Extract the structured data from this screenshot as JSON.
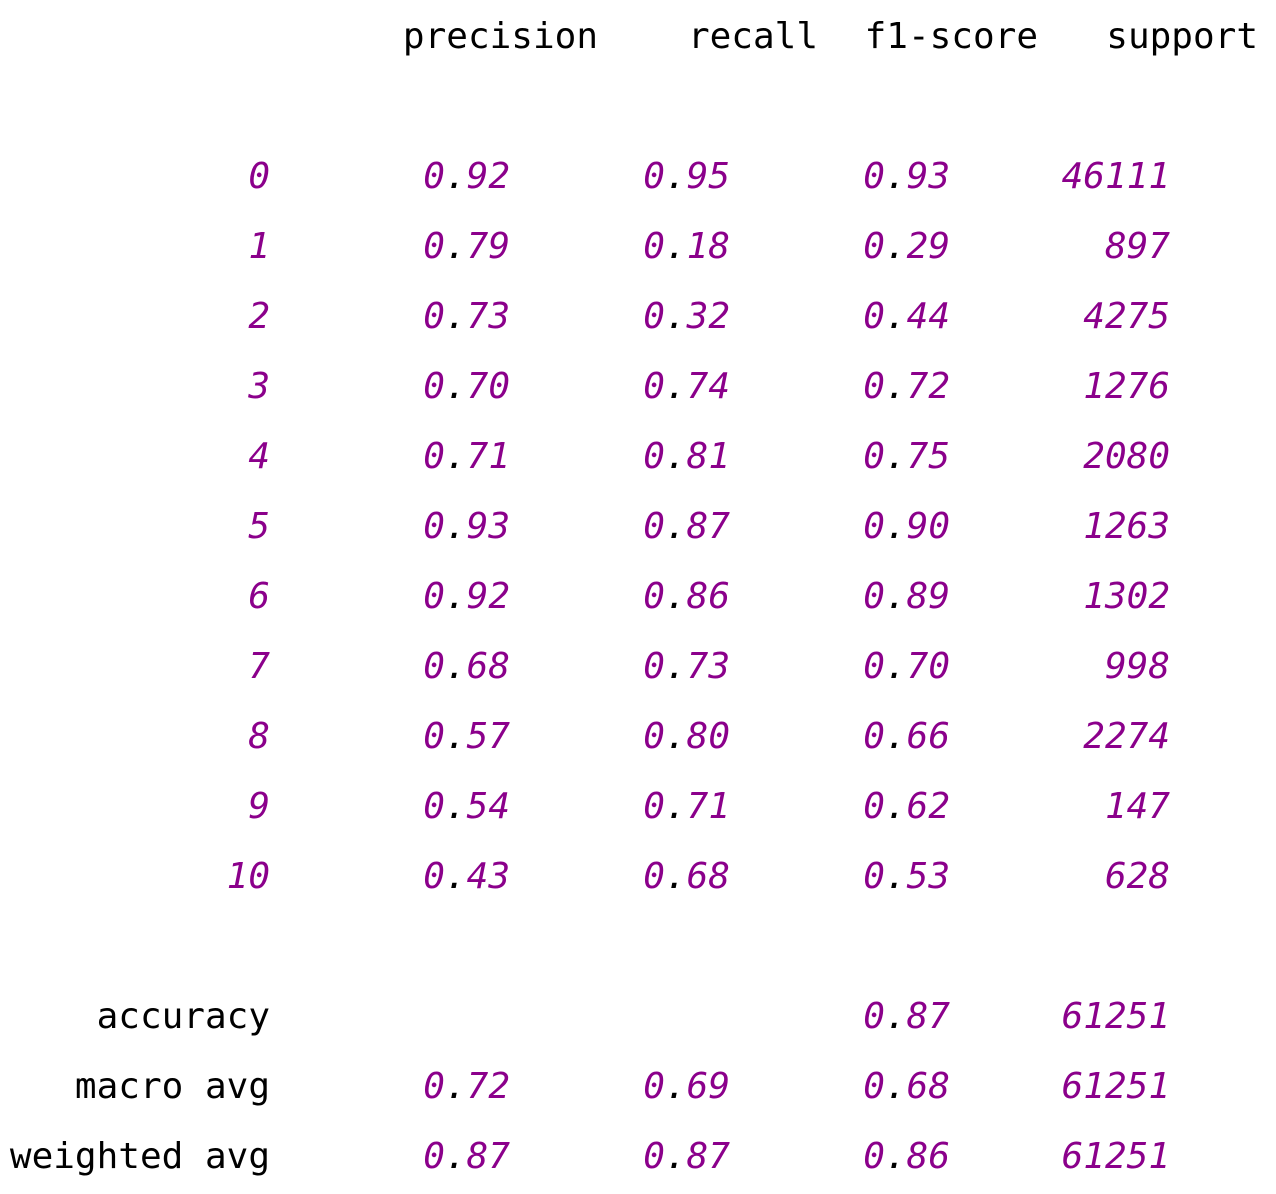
{
  "header": [
    "precision",
    "recall",
    "f1-score",
    "support"
  ],
  "rows": [
    {
      "label": "0",
      "precision": "0.92",
      "recall": "0.95",
      "f1-score": "0.93",
      "support": 46111
    },
    {
      "label": "1",
      "precision": "0.79",
      "recall": "0.18",
      "f1-score": "0.29",
      "support": 897
    },
    {
      "label": "2",
      "precision": "0.73",
      "recall": "0.32",
      "f1-score": "0.44",
      "support": 4275
    },
    {
      "label": "3",
      "precision": "0.70",
      "recall": "0.74",
      "f1-score": "0.72",
      "support": 1276
    },
    {
      "label": "4",
      "precision": "0.71",
      "recall": "0.81",
      "f1-score": "0.75",
      "support": 2080
    },
    {
      "label": "5",
      "precision": "0.93",
      "recall": "0.87",
      "f1-score": "0.90",
      "support": 1263
    },
    {
      "label": "6",
      "precision": "0.92",
      "recall": "0.86",
      "f1-score": "0.89",
      "support": 1302
    },
    {
      "label": "7",
      "precision": "0.68",
      "recall": "0.73",
      "f1-score": "0.70",
      "support": 998
    },
    {
      "label": "8",
      "precision": "0.57",
      "recall": "0.80",
      "f1-score": "0.66",
      "support": 2274
    },
    {
      "label": "9",
      "precision": "0.54",
      "recall": "0.71",
      "f1-score": "0.62",
      "support": 147
    },
    {
      "label": "10",
      "precision": "0.43",
      "recall": "0.68",
      "f1-score": "0.53",
      "support": 628
    }
  ],
  "summary": [
    {
      "label": "accuracy",
      "f1-score": "0.87",
      "support": 61251
    },
    {
      "label": "macro avg",
      "precision": "0.72",
      "recall": "0.69",
      "f1-score": "0.68",
      "support": 61251
    },
    {
      "label": "weighted avg",
      "precision": "0.87",
      "recall": "0.87",
      "f1-score": "0.86",
      "support": 61251
    }
  ]
}
